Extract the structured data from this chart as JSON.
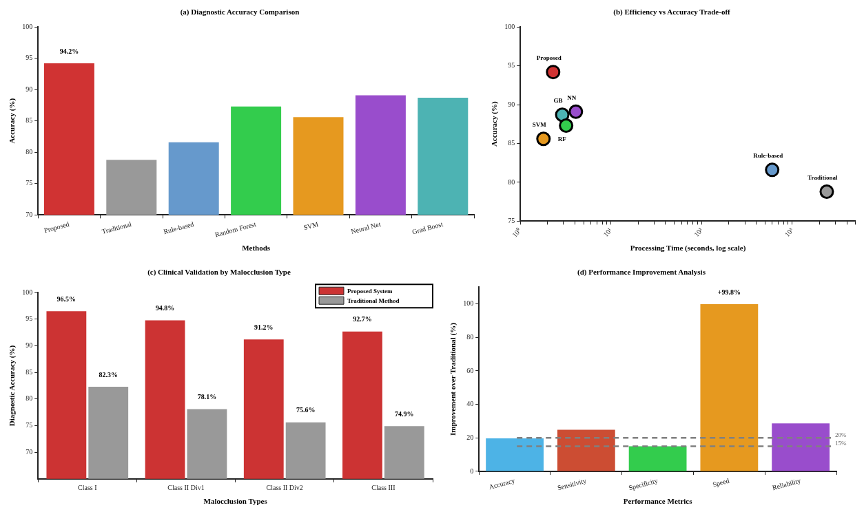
{
  "chart_data": [
    {
      "type": "bar",
      "title": "(a) Diagnostic Accuracy Comparison",
      "xlabel": "Methods",
      "ylabel": "Accuracy (%)",
      "categories": [
        "Proposed",
        "Traditional",
        "Rule-based",
        "Random Forest",
        "SVM",
        "Neural Net",
        "Grad Boost"
      ],
      "values": [
        94.2,
        78.8,
        81.6,
        87.3,
        85.6,
        89.1,
        88.7
      ],
      "colors": [
        "#d03333",
        "#999999",
        "#6699cc",
        "#33cc4d",
        "#e6991f",
        "#994dcc",
        "#4db3b3"
      ],
      "value_labels": [
        "94.2%",
        null,
        null,
        null,
        null,
        null,
        null
      ],
      "ylim": [
        70,
        100
      ],
      "yticks": [
        70,
        75,
        80,
        85,
        90,
        95,
        100
      ],
      "grid": false,
      "legend": false
    },
    {
      "type": "scatter",
      "title": "(b) Efficiency vs Accuracy Trade-off",
      "xlabel": "Processing Time (seconds, log scale)",
      "ylabel": "Accuracy (%)",
      "series": [
        {
          "name": "Proposed",
          "color": "#d03333",
          "x": [
            2.3
          ],
          "values": [
            94.2
          ]
        },
        {
          "name": "Traditional",
          "color": "#999999",
          "x": [
            2400
          ],
          "values": [
            78.8
          ]
        },
        {
          "name": "Rule-based",
          "color": "#6699cc",
          "x": [
            600
          ],
          "values": [
            81.6
          ]
        },
        {
          "name": "RF",
          "color": "#33cc4d",
          "x": [
            3.2
          ],
          "values": [
            87.3
          ]
        },
        {
          "name": "SVM",
          "color": "#e6991f",
          "x": [
            1.8
          ],
          "values": [
            85.6
          ]
        },
        {
          "name": "NN",
          "color": "#994dcc",
          "x": [
            4.1
          ],
          "values": [
            89.1
          ]
        },
        {
          "name": "GB",
          "color": "#4db3b3",
          "x": [
            2.9
          ],
          "values": [
            88.7
          ]
        }
      ],
      "log": "x",
      "marker": "circle",
      "xlim": [
        1,
        5000
      ],
      "xticks": [
        {
          "value": 1,
          "label": "10⁰"
        },
        {
          "value": 2,
          "label": null
        },
        {
          "value": 3,
          "label": null
        },
        {
          "value": 4,
          "label": null
        },
        {
          "value": 5,
          "label": null
        },
        {
          "value": 6,
          "label": null
        },
        {
          "value": 7,
          "label": null
        },
        {
          "value": 8,
          "label": null
        },
        {
          "value": 9,
          "label": null
        },
        {
          "value": 10,
          "label": "10¹"
        },
        {
          "value": 20,
          "label": null
        },
        {
          "value": 30,
          "label": null
        },
        {
          "value": 40,
          "label": null
        },
        {
          "value": 50,
          "label": null
        },
        {
          "value": 60,
          "label": null
        },
        {
          "value": 70,
          "label": null
        },
        {
          "value": 80,
          "label": null
        },
        {
          "value": 90,
          "label": null
        },
        {
          "value": 100,
          "label": "10²"
        },
        {
          "value": 200,
          "label": null
        },
        {
          "value": 300,
          "label": null
        },
        {
          "value": 400,
          "label": null
        },
        {
          "value": 500,
          "label": null
        },
        {
          "value": 600,
          "label": null
        },
        {
          "value": 700,
          "label": null
        },
        {
          "value": 800,
          "label": null
        },
        {
          "value": 900,
          "label": null
        },
        {
          "value": 1000,
          "label": "10³"
        },
        {
          "value": 2000,
          "label": null
        },
        {
          "value": 3000,
          "label": null
        },
        {
          "value": 4000,
          "label": null
        },
        {
          "value": 5000,
          "label": null
        }
      ],
      "ylim": [
        75,
        100
      ],
      "yticks": [
        75,
        80,
        85,
        90,
        95,
        100
      ],
      "grid": false,
      "legend": false
    },
    {
      "type": "bar",
      "title": "(c) Clinical Validation by Malocclusion Type",
      "xlabel": "Malocclusion Types",
      "ylabel": "Diagnostic Accuracy (%)",
      "categories": [
        "Class I",
        "Class II Div1",
        "Class II Div2",
        "Class III"
      ],
      "series": [
        {
          "name": "Proposed System",
          "color": "#cc3333",
          "values": [
            96.5,
            94.8,
            91.2,
            92.7
          ],
          "value_labels": [
            "96.5%",
            "94.8%",
            "91.2%",
            "92.7%"
          ]
        },
        {
          "name": "Traditional Method",
          "color": "#999999",
          "values": [
            82.3,
            78.1,
            75.6,
            74.9
          ],
          "value_labels": [
            "82.3%",
            "78.1%",
            "75.6%",
            "74.9%"
          ]
        }
      ],
      "ylim": [
        65,
        100
      ],
      "yticks": [
        70,
        75,
        80,
        85,
        90,
        95,
        100
      ],
      "grid": false,
      "legend": "top right"
    },
    {
      "type": "bar",
      "title": "(d) Performance Improvement Analysis",
      "xlabel": "Performance Metrics",
      "ylabel": "Improvement over Traditional (%)",
      "categories": [
        "Accuracy",
        "Sensitivity",
        "Specificity",
        "Speed",
        "Reliability"
      ],
      "values": [
        19.7,
        24.8,
        15.0,
        99.8,
        28.7
      ],
      "colors": [
        "#4db3e6",
        "#cc4d33",
        "#33cc4d",
        "#e6991f",
        "#994dcc"
      ],
      "value_labels": [
        null,
        null,
        null,
        "+99.8%",
        null
      ],
      "ref_lines": [
        {
          "axis": "y",
          "value": 20,
          "label": "20%",
          "color": "#808080",
          "line_style": "dashed"
        },
        {
          "axis": "y",
          "value": 15,
          "label": "15%",
          "color": "#808080",
          "line_style": "dashed"
        }
      ],
      "ylim": [
        0,
        110
      ],
      "yticks": [
        0,
        20,
        40,
        60,
        80,
        100
      ],
      "grid": false,
      "legend": false
    }
  ]
}
